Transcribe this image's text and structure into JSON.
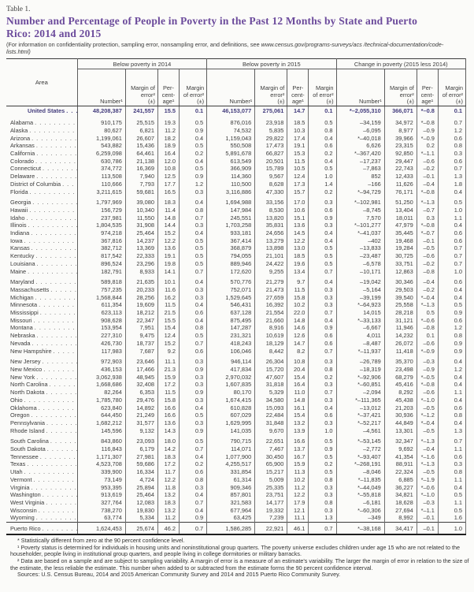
{
  "doc": {
    "table_label": "Table 1.",
    "title": "Number and Percentage of People in Poverty in the Past 12 Months by State and Puerto Rico: 2014 and 2015",
    "note_prefix": "(For information on confidentiality protection, sampling error, nonsampling error, and definitions, see ",
    "note_url": "www.census.gov/programs-surveys/acs /technical-documentation/code-lists.html)"
  },
  "table": {
    "area_header": "Area",
    "groups": [
      "Below poverty in 2014",
      "Below poverty in 2015",
      "Change in poverty (2015 less 2014)"
    ],
    "sub": {
      "number": "Number¹",
      "margin": "Margin of error²",
      "pm": "(±)",
      "pct": "Per-cent-age¹"
    },
    "rows": [
      {
        "area": "United States",
        "cls": "us",
        "v": [
          "48,208,387",
          "241,557",
          "15.5",
          "0.1",
          "46,153,077",
          "275,061",
          "14.7",
          "0.1",
          "*–2,055,310",
          "366,071",
          "*–0.8",
          "0.1"
        ]
      },
      {
        "area": "Alabama",
        "cls": "gap",
        "v": [
          "910,175",
          "25,515",
          "19.3",
          "0.5",
          "876,016",
          "23,918",
          "18.5",
          "0.5",
          "–34,159",
          "34,972",
          "*–0.8",
          "0.7"
        ]
      },
      {
        "area": "Alaska",
        "cls": "",
        "v": [
          "80,627",
          "6,821",
          "11.2",
          "0.9",
          "74,532",
          "5,835",
          "10.3",
          "0.8",
          "–6,095",
          "8,977",
          "–0.9",
          "1.2"
        ]
      },
      {
        "area": "Arizona",
        "cls": "",
        "v": [
          "1,199,061",
          "26,607",
          "18.2",
          "0.4",
          "1,159,043",
          "29,822",
          "17.4",
          "0.4",
          "*–40,018",
          "39,966",
          "*–0.9",
          "0.6"
        ]
      },
      {
        "area": "Arkansas",
        "cls": "",
        "v": [
          "543,882",
          "15,436",
          "18.9",
          "0.5",
          "550,508",
          "17,473",
          "19.1",
          "0.6",
          "6,626",
          "23,315",
          "0.2",
          "0.8"
        ]
      },
      {
        "area": "California",
        "cls": "",
        "v": [
          "6,259,098",
          "64,461",
          "16.4",
          "0.2",
          "5,891,678",
          "66,827",
          "15.3",
          "0.2",
          "*–367,420",
          "92,850",
          "*–1.1",
          "0.3"
        ]
      },
      {
        "area": "Colorado",
        "cls": "",
        "v": [
          "630,786",
          "21,138",
          "12.0",
          "0.4",
          "613,549",
          "20,501",
          "11.5",
          "0.4",
          "–17,237",
          "29,447",
          "–0.6",
          "0.6"
        ]
      },
      {
        "area": "Connecticut",
        "cls": "",
        "v": [
          "374,772",
          "16,369",
          "10.8",
          "0.5",
          "366,909",
          "15,789",
          "10.5",
          "0.5",
          "–7,863",
          "22,743",
          "–0.2",
          "0.7"
        ]
      },
      {
        "area": "Delaware",
        "cls": "",
        "v": [
          "113,508",
          "7,940",
          "12.5",
          "0.9",
          "114,360",
          "9,567",
          "12.4",
          "1.0",
          "852",
          "12,433",
          "–0.1",
          "1.3"
        ]
      },
      {
        "area": "District of Columbia",
        "cls": "",
        "v": [
          "110,666",
          "7,793",
          "17.7",
          "1.2",
          "110,500",
          "8,628",
          "17.3",
          "1.4",
          "–166",
          "11,626",
          "–0.4",
          "1.8"
        ]
      },
      {
        "area": "Florida",
        "cls": "",
        "v": [
          "3,211,615",
          "59,681",
          "16.5",
          "0.3",
          "3,116,886",
          "47,330",
          "15.7",
          "0.2",
          "*–94,729",
          "76,171",
          "*–0.8",
          "0.4"
        ]
      },
      {
        "area": "Georgia",
        "cls": "gap",
        "v": [
          "1,797,969",
          "39,080",
          "18.3",
          "0.4",
          "1,694,988",
          "33,156",
          "17.0",
          "0.3",
          "*–102,981",
          "51,250",
          "*–1.3",
          "0.5"
        ]
      },
      {
        "area": "Hawaii",
        "cls": "",
        "v": [
          "156,729",
          "10,340",
          "11.4",
          "0.8",
          "147,984",
          "8,530",
          "10.6",
          "0.6",
          "–8,745",
          "13,404",
          "–0.7",
          "1.0"
        ]
      },
      {
        "area": "Idaho",
        "cls": "",
        "v": [
          "237,981",
          "11,550",
          "14.8",
          "0.7",
          "245,551",
          "13,820",
          "15.1",
          "0.9",
          "7,570",
          "18,011",
          "0.3",
          "1.1"
        ]
      },
      {
        "area": "Illinois",
        "cls": "",
        "v": [
          "1,804,535",
          "31,908",
          "14.4",
          "0.3",
          "1,703,258",
          "35,831",
          "13.6",
          "0.3",
          "*–101,277",
          "47,979",
          "*–0.8",
          "0.4"
        ]
      },
      {
        "area": "Indiana",
        "cls": "",
        "v": [
          "974,218",
          "25,464",
          "15.2",
          "0.4",
          "933,181",
          "24,656",
          "14.5",
          "0.4",
          "*–41,037",
          "35,445",
          "*–0.7",
          "0.6"
        ]
      },
      {
        "area": "Iowa",
        "cls": "",
        "v": [
          "367,816",
          "14,237",
          "12.2",
          "0.5",
          "367,414",
          "13,279",
          "12.2",
          "0.4",
          "–402",
          "19,468",
          "–0.1",
          "0.6"
        ]
      },
      {
        "area": "Kansas",
        "cls": "",
        "v": [
          "382,712",
          "13,369",
          "13.6",
          "0.5",
          "368,879",
          "13,898",
          "13.0",
          "0.5",
          "–13,833",
          "19,284",
          "–0.5",
          "0.7"
        ]
      },
      {
        "area": "Kentucky",
        "cls": "",
        "v": [
          "817,542",
          "22,333",
          "19.1",
          "0.5",
          "794,055",
          "21,101",
          "18.5",
          "0.5",
          "–23,487",
          "30,725",
          "–0.6",
          "0.7"
        ]
      },
      {
        "area": "Louisiana",
        "cls": "",
        "v": [
          "896,524",
          "23,296",
          "19.8",
          "0.5",
          "889,946",
          "24,422",
          "19.6",
          "0.5",
          "–6,578",
          "33,751",
          "–0.2",
          "0.7"
        ]
      },
      {
        "area": "Maine",
        "cls": "",
        "v": [
          "182,791",
          "8,933",
          "14.1",
          "0.7",
          "172,620",
          "9,255",
          "13.4",
          "0.7",
          "–10,171",
          "12,863",
          "–0.8",
          "1.0"
        ]
      },
      {
        "area": "Maryland",
        "cls": "gap",
        "v": [
          "589,818",
          "21,635",
          "10.1",
          "0.4",
          "570,776",
          "21,279",
          "9.7",
          "0.4",
          "–19,042",
          "30,346",
          "–0.4",
          "0.6"
        ]
      },
      {
        "area": "Massachusetts",
        "cls": "",
        "v": [
          "757,235",
          "20,233",
          "11.6",
          "0.3",
          "752,071",
          "21,473",
          "11.5",
          "0.3",
          "–5,164",
          "29,503",
          "–0.2",
          "0.4"
        ]
      },
      {
        "area": "Michigan",
        "cls": "",
        "v": [
          "1,568,844",
          "28,256",
          "16.2",
          "0.3",
          "1,529,645",
          "27,659",
          "15.8",
          "0.3",
          "–39,199",
          "39,540",
          "*–0.4",
          "0.4"
        ]
      },
      {
        "area": "Minnesota",
        "cls": "",
        "v": [
          "611,354",
          "19,609",
          "11.5",
          "0.4",
          "546,431",
          "16,392",
          "10.2",
          "0.3",
          "*–64,923",
          "25,558",
          "*–1.3",
          "0.5"
        ]
      },
      {
        "area": "Mississippi",
        "cls": "",
        "v": [
          "623,113",
          "18,212",
          "21.5",
          "0.6",
          "637,128",
          "21,554",
          "22.0",
          "0.7",
          "14,015",
          "28,218",
          "0.5",
          "0.9"
        ]
      },
      {
        "area": "Missouri",
        "cls": "",
        "v": [
          "908,628",
          "22,347",
          "15.5",
          "0.4",
          "875,495",
          "21,660",
          "14.8",
          "0.4",
          "*–33,133",
          "31,121",
          "*–0.6",
          "0.6"
        ]
      },
      {
        "area": "Montana",
        "cls": "",
        "v": [
          "153,954",
          "7,951",
          "15.4",
          "0.8",
          "147,287",
          "8,916",
          "14.6",
          "0.9",
          "–6,667",
          "11,946",
          "–0.8",
          "1.2"
        ]
      },
      {
        "area": "Nebraska",
        "cls": "",
        "v": [
          "227,310",
          "9,475",
          "12.4",
          "0.5",
          "231,321",
          "10,619",
          "12.6",
          "0.6",
          "4,011",
          "14,232",
          "0.1",
          "0.8"
        ]
      },
      {
        "area": "Nevada",
        "cls": "",
        "v": [
          "426,730",
          "18,737",
          "15.2",
          "0.7",
          "418,243",
          "18,129",
          "14.7",
          "0.6",
          "–8,487",
          "26,072",
          "–0.6",
          "0.9"
        ]
      },
      {
        "area": "New Hampshire",
        "cls": "",
        "v": [
          "117,983",
          "7,687",
          "9.2",
          "0.6",
          "106,046",
          "8,442",
          "8.2",
          "0.7",
          "*–11,937",
          "11,418",
          "*–0.9",
          "0.9"
        ]
      },
      {
        "area": "New Jersey",
        "cls": "gap",
        "v": [
          "972,903",
          "23,646",
          "11.1",
          "0.3",
          "946,114",
          "26,304",
          "10.8",
          "0.3",
          "–26,789",
          "35,370",
          "–0.3",
          "0.4"
        ]
      },
      {
        "area": "New Mexico",
        "cls": "",
        "v": [
          "436,153",
          "17,466",
          "21.3",
          "0.9",
          "417,834",
          "15,720",
          "20.4",
          "0.8",
          "–18,319",
          "23,498",
          "–0.9",
          "1.2"
        ]
      },
      {
        "area": "New York",
        "cls": "",
        "v": [
          "3,062,938",
          "48,945",
          "15.9",
          "0.3",
          "2,970,032",
          "47,607",
          "15.4",
          "0.2",
          "*–92,906",
          "68,279",
          "*–0.5",
          "0.4"
        ]
      },
      {
        "area": "North Carolina",
        "cls": "",
        "v": [
          "1,668,686",
          "32,408",
          "17.2",
          "0.3",
          "1,607,835",
          "31,818",
          "16.4",
          "0.3",
          "*–60,851",
          "45,416",
          "*–0.8",
          "0.4"
        ]
      },
      {
        "area": "North Dakota",
        "cls": "",
        "v": [
          "82,264",
          "6,353",
          "11.5",
          "0.9",
          "80,170",
          "5,329",
          "11.0",
          "0.7",
          "–2,094",
          "8,292",
          "–0.6",
          "1.1"
        ]
      },
      {
        "area": "Ohio",
        "cls": "",
        "v": [
          "1,785,780",
          "29,476",
          "15.8",
          "0.3",
          "1,674,415",
          "34,580",
          "14.8",
          "0.3",
          "*–111,365",
          "45,438",
          "*–1.0",
          "0.4"
        ]
      },
      {
        "area": "Oklahoma",
        "cls": "",
        "v": [
          "623,840",
          "14,892",
          "16.6",
          "0.4",
          "610,828",
          "15,093",
          "16.1",
          "0.4",
          "–13,012",
          "21,203",
          "–0.5",
          "0.6"
        ]
      },
      {
        "area": "Oregon",
        "cls": "",
        "v": [
          "644,450",
          "21,249",
          "16.6",
          "0.5",
          "607,029",
          "22,484",
          "15.4",
          "0.6",
          "*–37,421",
          "30,936",
          "*–1.2",
          "0.8"
        ]
      },
      {
        "area": "Pennsylvania",
        "cls": "",
        "v": [
          "1,682,212",
          "31,577",
          "13.6",
          "0.3",
          "1,629,995",
          "31,848",
          "13.2",
          "0.3",
          "*–52,217",
          "44,849",
          "*–0.4",
          "0.4"
        ]
      },
      {
        "area": "Rhode Island",
        "cls": "",
        "v": [
          "145,596",
          "9,132",
          "14.3",
          "0.9",
          "141,035",
          "9,670",
          "13.9",
          "1.0",
          "–4,561",
          "13,301",
          "–0.5",
          "1.3"
        ]
      },
      {
        "area": "South Carolina",
        "cls": "gap",
        "v": [
          "843,860",
          "23,093",
          "18.0",
          "0.5",
          "790,715",
          "22,651",
          "16.6",
          "0.5",
          "*–53,145",
          "32,347",
          "*–1.3",
          "0.7"
        ]
      },
      {
        "area": "South Dakota",
        "cls": "",
        "v": [
          "116,843",
          "6,179",
          "14.2",
          "0.7",
          "114,071",
          "7,467",
          "13.7",
          "0.9",
          "–2,772",
          "9,692",
          "–0.4",
          "1.1"
        ]
      },
      {
        "area": "Tennessee",
        "cls": "",
        "v": [
          "1,171,307",
          "27,981",
          "18.3",
          "0.4",
          "1,077,900",
          "30,450",
          "16.7",
          "0.5",
          "*–93,407",
          "41,354",
          "*–1.6",
          "0.6"
        ]
      },
      {
        "area": "Texas",
        "cls": "",
        "v": [
          "4,523,708",
          "59,686",
          "17.2",
          "0.2",
          "4,255,517",
          "65,900",
          "15.9",
          "0.2",
          "*–268,191",
          "88,911",
          "*–1.3",
          "0.3"
        ]
      },
      {
        "area": "Utah",
        "cls": "",
        "v": [
          "339,900",
          "16,334",
          "11.7",
          "0.6",
          "331,854",
          "15,217",
          "11.3",
          "0.5",
          "–8,046",
          "22,324",
          "–0.5",
          "0.8"
        ]
      },
      {
        "area": "Vermont",
        "cls": "",
        "v": [
          "73,149",
          "4,724",
          "12.2",
          "0.8",
          "61,314",
          "5,009",
          "10.2",
          "0.8",
          "*–11,835",
          "6,885",
          "*–1.9",
          "1.1"
        ]
      },
      {
        "area": "Virginia",
        "cls": "",
        "v": [
          "953,395",
          "25,894",
          "11.8",
          "0.3",
          "909,346",
          "25,335",
          "11.2",
          "0.3",
          "*–44,049",
          "36,227",
          "*–0.6",
          "0.4"
        ]
      },
      {
        "area": "Washington",
        "cls": "",
        "v": [
          "913,619",
          "25,464",
          "13.2",
          "0.4",
          "857,801",
          "23,751",
          "12.2",
          "0.3",
          "*–55,818",
          "34,821",
          "*–1.0",
          "0.5"
        ]
      },
      {
        "area": "West Virginia",
        "cls": "",
        "v": [
          "327,764",
          "12,083",
          "18.3",
          "0.7",
          "321,583",
          "14,177",
          "17.9",
          "0.8",
          "–6,181",
          "18,628",
          "–0.3",
          "1.1"
        ]
      },
      {
        "area": "Wisconsin",
        "cls": "",
        "v": [
          "738,270",
          "19,830",
          "13.2",
          "0.4",
          "677,964",
          "19,332",
          "12.1",
          "0.3",
          "*–60,306",
          "27,694",
          "*–1.1",
          "0.5"
        ]
      },
      {
        "area": "Wyoming",
        "cls": "",
        "v": [
          "63,774",
          "5,334",
          "11.2",
          "0.9",
          "63,425",
          "7,239",
          "11.1",
          "1.3",
          "–349",
          "8,992",
          "–0.1",
          "1.6"
        ]
      },
      {
        "area": "Puerto Rico",
        "cls": "pr",
        "v": [
          "1,624,453",
          "25,674",
          "46.2",
          "0.7",
          "1,586,285",
          "22,921",
          "46.1",
          "0.7",
          "*–38,168",
          "34,417",
          "–0.1",
          "1.0"
        ]
      }
    ]
  },
  "footnotes": {
    "star": "* Statistically different from zero at the 90 percent confidence level.",
    "fn1": "¹ Poverty status is determined for individuals in housing units and noninstitutional group quarters. The poverty universe excludes children under age 15 who are not related to the householder, people living in institutional group quarters, and people living in college dormitories or military barracks.",
    "fn2": "² Data are based on a sample and are subject to sampling variability. A margin of error is a measure of an estimate's variability. The larger the margin of error in relation to the size of the estimate, the less reliable the estimate. This number when added to or subtracted from the estimate forms the 90 percent confidence interval.",
    "sources": "Sources: U.S. Census Bureau, 2014 and 2015 American Community Survey and 2014 and 2015 Puerto Rico Community Survey."
  }
}
